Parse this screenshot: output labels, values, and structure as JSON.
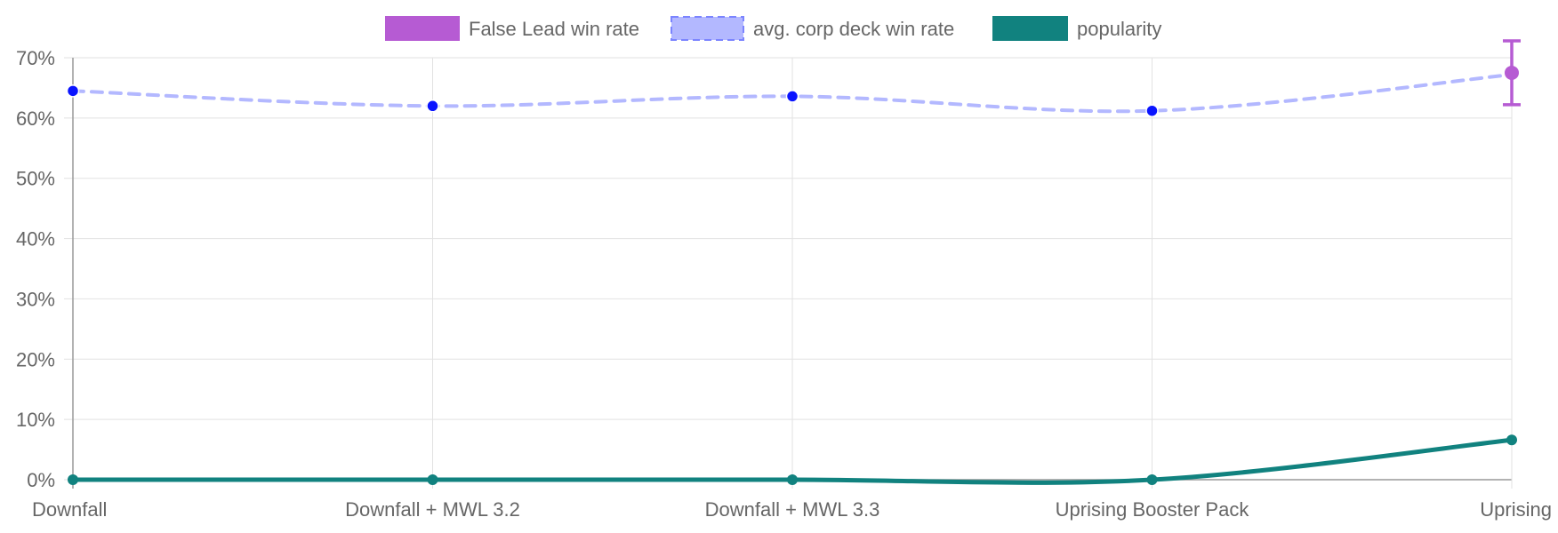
{
  "chart_data": {
    "type": "line",
    "categories": [
      "Downfall",
      "Downfall + MWL 3.2",
      "Downfall + MWL 3.3",
      "Uprising Booster Pack",
      "Uprising"
    ],
    "y_ticks": [
      "0%",
      "10%",
      "20%",
      "30%",
      "40%",
      "50%",
      "60%",
      "70%"
    ],
    "ylim": [
      0,
      70
    ],
    "grid": true,
    "legend_position": "top",
    "series": [
      {
        "name": "False Lead win rate",
        "color": "#b65bd3",
        "style": "point-with-error-bar",
        "values": [
          null,
          null,
          null,
          null,
          67.5
        ],
        "error_low": [
          null,
          null,
          null,
          null,
          62.2
        ],
        "error_high": [
          null,
          null,
          null,
          null,
          72.8
        ]
      },
      {
        "name": "avg. corp deck win rate",
        "color": "#b3b8ff",
        "point_color": "#0a14ff",
        "style": "dashed",
        "values": [
          64.5,
          62.0,
          63.6,
          61.2,
          67.2
        ]
      },
      {
        "name": "popularity",
        "color": "#11827f",
        "style": "solid",
        "values": [
          0,
          0,
          0,
          0,
          6.6
        ]
      }
    ]
  }
}
